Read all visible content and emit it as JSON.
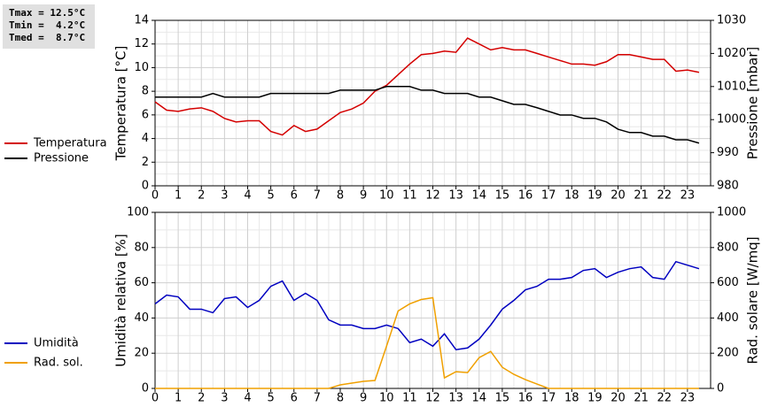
{
  "chart_data": [
    {
      "type": "line",
      "annotations": [
        "Tmax = 12.5°C",
        "Tmin =  4.2°C",
        "Tmed =  8.7°C"
      ],
      "y_label": "Temperatura [°C]",
      "y2_label": "Pressione [mbar]",
      "x": [
        0,
        0.5,
        1,
        1.5,
        2,
        2.5,
        3,
        3.5,
        4,
        4.5,
        5,
        5.5,
        6,
        6.5,
        7,
        7.5,
        8,
        8.5,
        9,
        9.5,
        10,
        10.5,
        11,
        11.5,
        12,
        12.5,
        13,
        13.5,
        14,
        14.5,
        15,
        15.5,
        16,
        16.5,
        17,
        17.5,
        18,
        18.5,
        19,
        19.5,
        20,
        20.5,
        21,
        21.5,
        22,
        22.5,
        23,
        23.5
      ],
      "xlim": [
        0,
        24
      ],
      "xticks": [
        0,
        1,
        2,
        3,
        4,
        5,
        6,
        7,
        8,
        9,
        10,
        11,
        12,
        13,
        14,
        15,
        16,
        17,
        18,
        19,
        20,
        21,
        22,
        23
      ],
      "ylim": [
        0,
        14
      ],
      "yticks": [
        0,
        2,
        4,
        6,
        8,
        10,
        12,
        14
      ],
      "y2lim": [
        980,
        1030
      ],
      "y2ticks": [
        980,
        990,
        1000,
        1010,
        1020,
        1030
      ],
      "grid": true,
      "series": [
        {
          "name": "Temperatura",
          "color": "#d40000",
          "values": [
            7.1,
            6.4,
            6.3,
            6.5,
            6.6,
            6.3,
            5.7,
            5.4,
            5.5,
            5.5,
            4.6,
            4.3,
            5.1,
            4.6,
            4.8,
            5.5,
            6.2,
            6.5,
            7.0,
            8.0,
            8.5,
            9.4,
            10.3,
            11.1,
            11.2,
            11.4,
            11.3,
            12.5,
            12.0,
            11.5,
            11.7,
            11.5,
            11.5,
            11.2,
            10.9,
            10.6,
            10.3,
            10.3,
            10.2,
            10.5,
            11.1,
            11.1,
            10.9,
            10.7,
            10.7,
            9.7,
            9.8,
            9.6
          ]
        },
        {
          "name": "Pressione",
          "color": "#000000",
          "axis": "y2",
          "values": [
            1006.8,
            1006.8,
            1006.8,
            1006.8,
            1006.8,
            1007.9,
            1006.8,
            1006.8,
            1006.8,
            1006.8,
            1007.9,
            1007.9,
            1007.9,
            1007.9,
            1007.9,
            1007.9,
            1008.9,
            1008.9,
            1008.9,
            1008.9,
            1010,
            1010,
            1010,
            1008.9,
            1008.9,
            1007.9,
            1007.9,
            1007.9,
            1006.8,
            1006.8,
            1005.7,
            1004.6,
            1004.6,
            1003.6,
            1002.5,
            1001.4,
            1001.4,
            1000.4,
            1000.4,
            999.3,
            997.1,
            996.1,
            996.1,
            995,
            995,
            993.9,
            993.9,
            992.9
          ]
        }
      ]
    },
    {
      "type": "line",
      "y_label": "Umidità relativa [%]",
      "y2_label": "Rad. solare [W/mq]",
      "x": [
        0,
        0.5,
        1,
        1.5,
        2,
        2.5,
        3,
        3.5,
        4,
        4.5,
        5,
        5.5,
        6,
        6.5,
        7,
        7.5,
        8,
        8.5,
        9,
        9.5,
        10,
        10.5,
        11,
        11.5,
        12,
        12.5,
        13,
        13.5,
        14,
        14.5,
        15,
        15.5,
        16,
        16.5,
        17,
        17.5,
        18,
        18.5,
        19,
        19.5,
        20,
        20.5,
        21,
        21.5,
        22,
        22.5,
        23,
        23.5
      ],
      "xlim": [
        0,
        24
      ],
      "xticks": [
        0,
        1,
        2,
        3,
        4,
        5,
        6,
        7,
        8,
        9,
        10,
        11,
        12,
        13,
        14,
        15,
        16,
        17,
        18,
        19,
        20,
        21,
        22,
        23
      ],
      "ylim": [
        0,
        100
      ],
      "yticks": [
        0,
        20,
        40,
        60,
        80,
        100
      ],
      "y2lim": [
        0,
        1000
      ],
      "y2ticks": [
        0,
        200,
        400,
        600,
        800,
        1000
      ],
      "grid": true,
      "series": [
        {
          "name": "Umidità",
          "color": "#0000c0",
          "values": [
            48,
            53,
            52,
            45,
            45,
            43,
            51,
            52,
            46,
            50,
            58,
            61,
            50,
            54,
            50,
            39,
            36,
            36,
            34,
            34,
            36,
            34,
            26,
            28,
            24,
            31,
            22,
            23,
            28,
            36,
            45,
            50,
            56,
            58,
            62,
            62,
            63,
            67,
            68,
            63,
            66,
            68,
            69,
            63,
            62,
            72,
            70,
            68
          ]
        },
        {
          "name": "Rad. sol.",
          "color": "#f0a000",
          "axis": "y2",
          "values": [
            0,
            0,
            0,
            0,
            0,
            0,
            0,
            0,
            0,
            0,
            0,
            0,
            0,
            0,
            0,
            0,
            20,
            30,
            40,
            45,
            240,
            440,
            480,
            505,
            515,
            60,
            95,
            90,
            175,
            210,
            120,
            80,
            50,
            25,
            0,
            0,
            0,
            0,
            0,
            0,
            0,
            0,
            0,
            0,
            0,
            0,
            0,
            0
          ]
        }
      ]
    }
  ]
}
